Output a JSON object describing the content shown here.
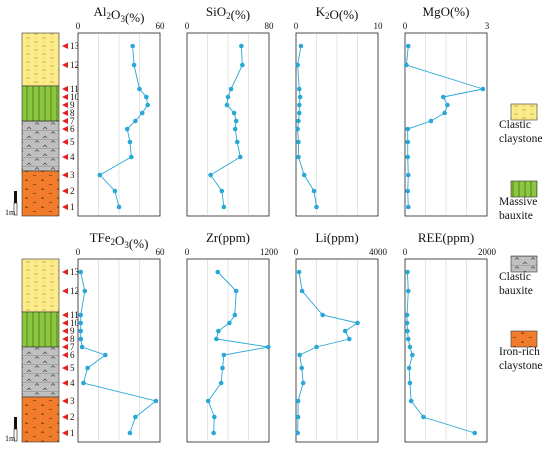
{
  "samples": [
    "1",
    "2",
    "3",
    "4",
    "5",
    "6",
    "7",
    "8",
    "9",
    "10",
    "11",
    "12",
    "13"
  ],
  "scale_bar": "1m",
  "lithology": {
    "iron_claystone": {
      "color": "#f07c2c",
      "pattern_text": "Fe  Al"
    },
    "clastic_bauxite": {
      "color": "#c0c0c0",
      "pattern_text": "Al"
    },
    "massive_bauxite": {
      "color": "#8dc63f"
    },
    "clastic_claystone": {
      "color": "#fdeb8a"
    }
  },
  "colors": {
    "series": "#29a7d6",
    "arrow": "#e41f1f",
    "frame": "#222222",
    "grid": "#bbbbbb"
  },
  "legend": [
    {
      "key": "clastic_claystone",
      "line1": "Clastic",
      "line2": "claystone"
    },
    {
      "key": "massive_bauxite",
      "line1": "Massive",
      "line2": "bauxite"
    },
    {
      "key": "clastic_bauxite",
      "line1": "Clastic",
      "line2": "bauxite"
    },
    {
      "key": "iron_claystone",
      "line1": "Iron-rich",
      "line2": "claystone"
    }
  ],
  "chart_data": [
    {
      "type": "line",
      "title": "Al2O3(%)",
      "xlim": [
        0,
        60
      ],
      "xticks": [
        "0",
        "60"
      ],
      "samples": [
        1,
        2,
        3,
        4,
        5,
        6,
        7,
        8,
        9,
        10,
        11,
        12,
        13
      ],
      "values": [
        30,
        27,
        16,
        39,
        38,
        36,
        42,
        47,
        51,
        50,
        45,
        41,
        40
      ]
    },
    {
      "type": "line",
      "title": "SiO2(%)",
      "xlim": [
        0,
        80
      ],
      "xticks": [
        "0",
        "80"
      ],
      "samples": [
        1,
        2,
        3,
        4,
        5,
        6,
        7,
        8,
        9,
        10,
        11,
        12,
        13
      ],
      "values": [
        36,
        34,
        23,
        52,
        49,
        47,
        48,
        46,
        39,
        40,
        43,
        54,
        53
      ]
    },
    {
      "type": "line",
      "title": "K2O(%)",
      "xlim": [
        0,
        10
      ],
      "xticks": [
        "0",
        "10"
      ],
      "samples": [
        1,
        2,
        3,
        4,
        5,
        6,
        7,
        8,
        9,
        10,
        11,
        12,
        13
      ],
      "values": [
        2.5,
        2.2,
        1.0,
        0.3,
        0.3,
        0.2,
        0.3,
        0.4,
        0.4,
        0.5,
        0.4,
        0.2,
        0.6
      ]
    },
    {
      "type": "line",
      "title": "MgO(%)",
      "xlim": [
        0,
        3
      ],
      "xticks": [
        "0",
        "3"
      ],
      "samples": [
        1,
        2,
        3,
        4,
        5,
        6,
        7,
        8,
        9,
        10,
        11,
        12,
        13
      ],
      "values": [
        0.12,
        0.1,
        0.12,
        0.1,
        0.1,
        0.1,
        0.95,
        1.45,
        1.55,
        1.4,
        2.85,
        0.05,
        0.12
      ]
    },
    {
      "type": "line",
      "title": "TFe2O3(%)",
      "xlim": [
        0,
        60
      ],
      "xticks": [
        "0",
        "60"
      ],
      "samples": [
        1,
        2,
        3,
        4,
        5,
        6,
        7,
        8,
        9,
        10,
        11,
        12,
        13
      ],
      "values": [
        38,
        42,
        57,
        4,
        7,
        20,
        3,
        2,
        2,
        2,
        2,
        5,
        2
      ]
    },
    {
      "type": "line",
      "title": "Zr(ppm)",
      "xlim": [
        0,
        1200
      ],
      "xticks": [
        "0",
        "1200"
      ],
      "samples": [
        1,
        2,
        3,
        4,
        5,
        6,
        7,
        8,
        9,
        10,
        11,
        12,
        13
      ],
      "values": [
        390,
        400,
        310,
        500,
        520,
        540,
        1190,
        430,
        460,
        620,
        700,
        720,
        450
      ]
    },
    {
      "type": "line",
      "title": "Li(ppm)",
      "xlim": [
        0,
        4000
      ],
      "xticks": [
        "0",
        "4000"
      ],
      "samples": [
        1,
        2,
        3,
        4,
        5,
        6,
        7,
        8,
        9,
        10,
        11,
        12,
        13
      ],
      "values": [
        80,
        100,
        100,
        350,
        280,
        180,
        1000,
        2600,
        2400,
        3000,
        1300,
        300,
        150
      ]
    },
    {
      "type": "line",
      "title": "REE(ppm)",
      "xlim": [
        0,
        2000
      ],
      "xticks": [
        "0",
        "2000"
      ],
      "samples": [
        1,
        2,
        3,
        4,
        5,
        6,
        7,
        8,
        9,
        10,
        11,
        12,
        13
      ],
      "values": [
        1700,
        450,
        150,
        120,
        100,
        180,
        120,
        80,
        60,
        50,
        50,
        80,
        60
      ]
    }
  ]
}
